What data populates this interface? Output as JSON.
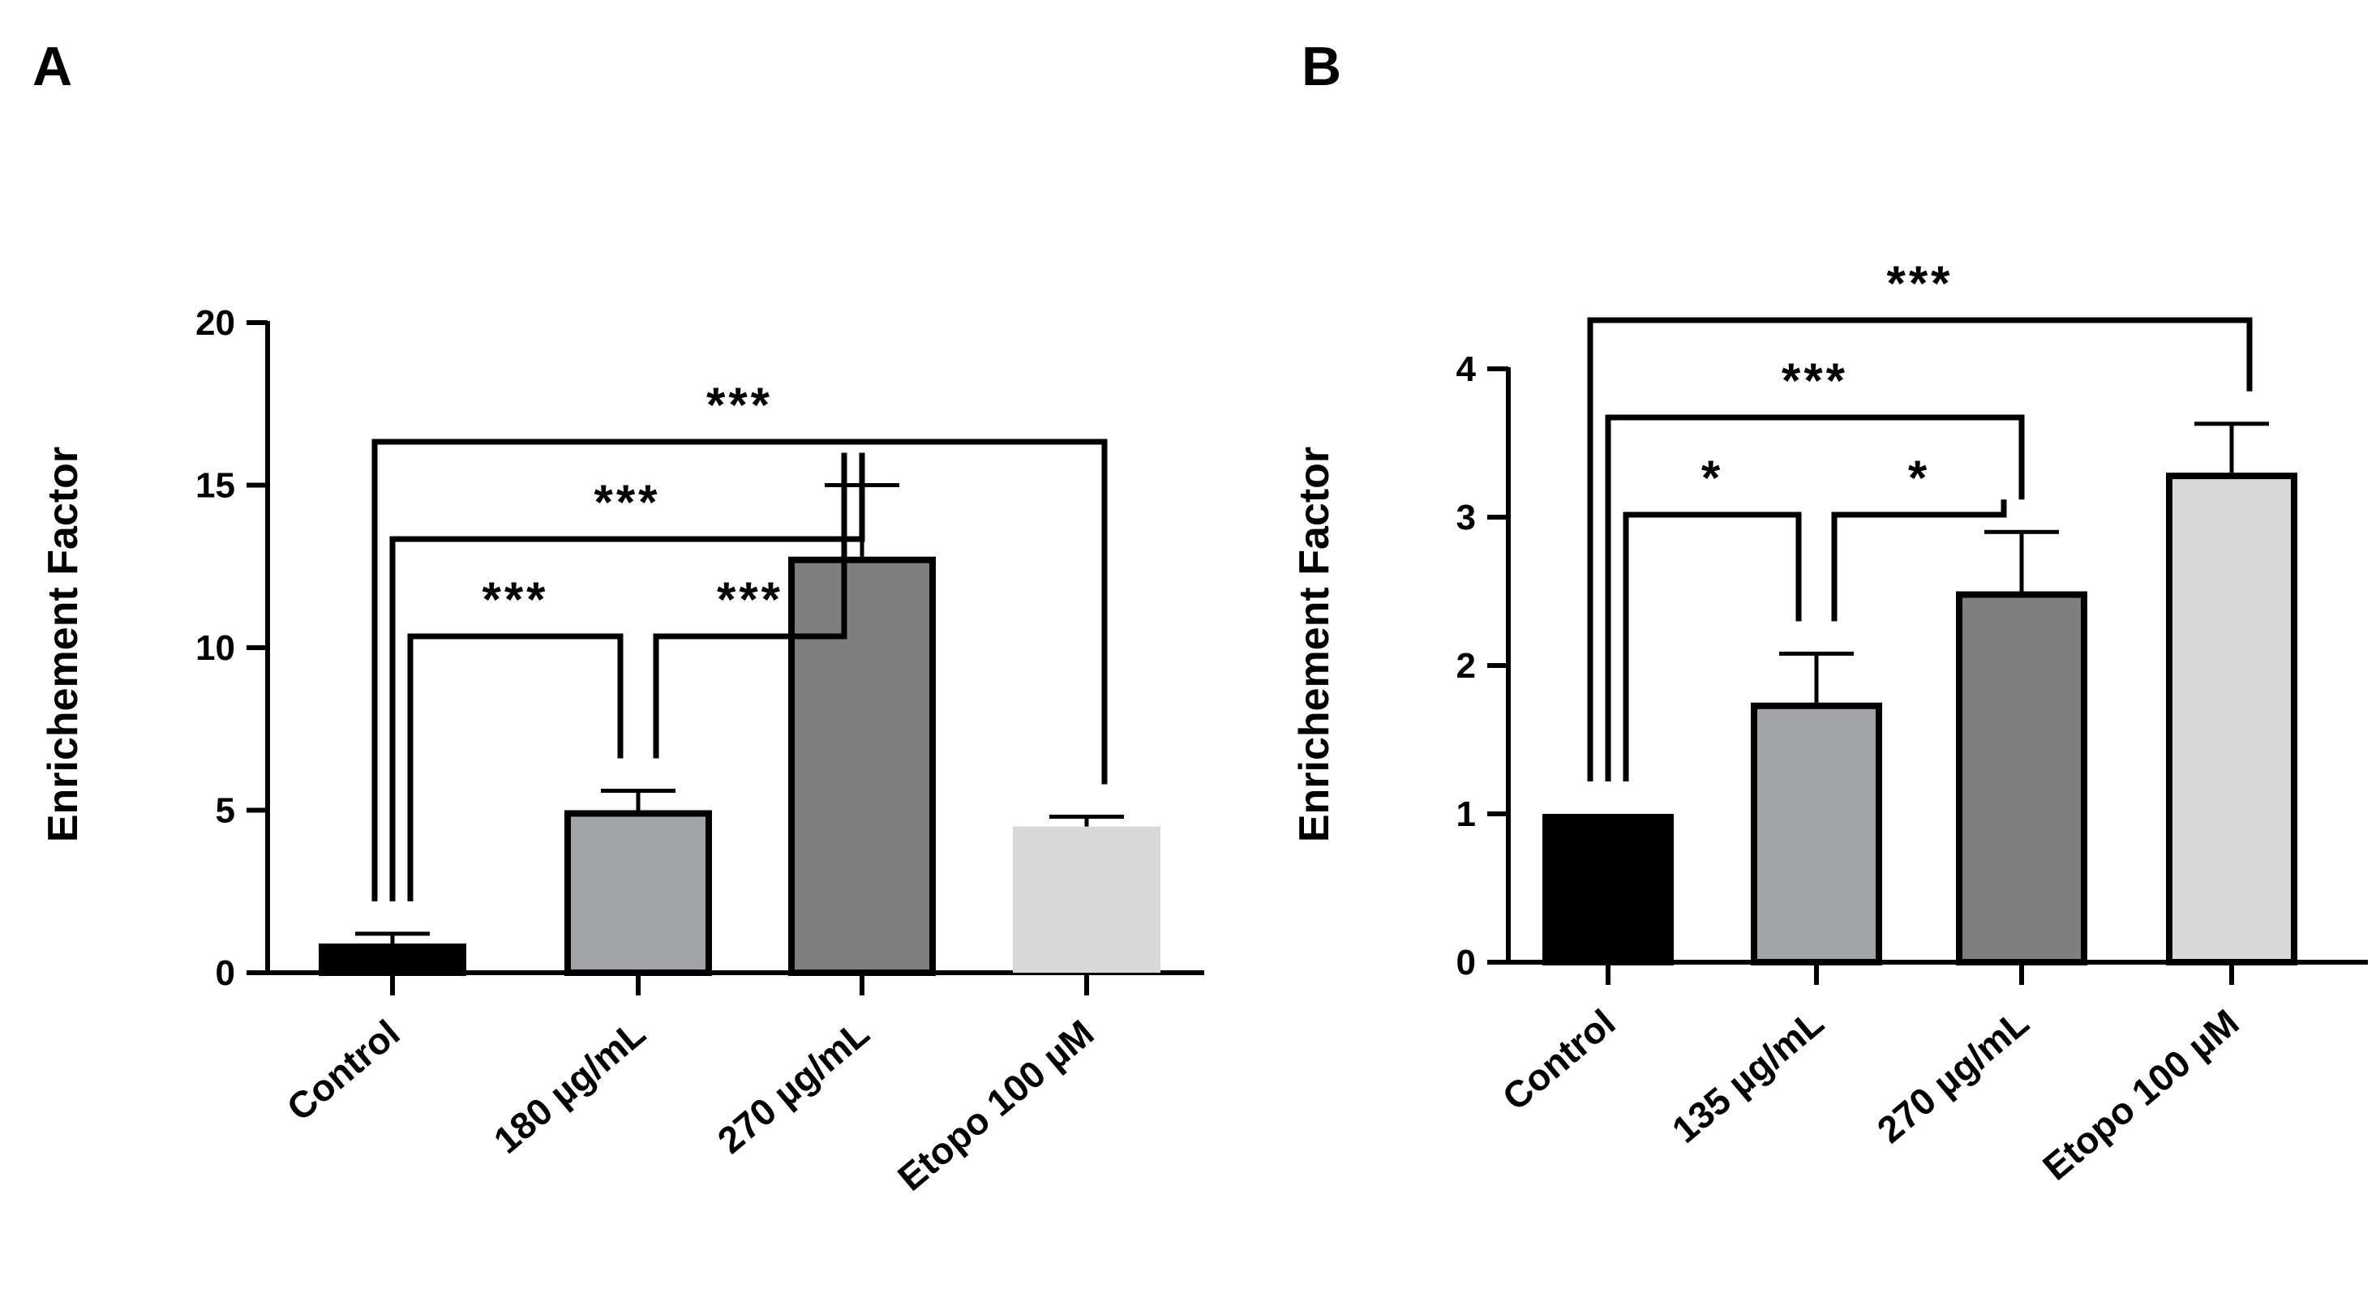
{
  "chart_data": [
    {
      "type": "bar",
      "panel": "A",
      "ylabel": "Enrichement Factor",
      "ylim": [
        0,
        20
      ],
      "yticks": [
        0,
        5,
        10,
        15,
        20
      ],
      "categories": [
        "Control",
        "180 µg/mL",
        "270 µg/mL",
        "Etopo 100 µM"
      ],
      "values": [
        0.9,
        5.0,
        12.8,
        4.5
      ],
      "errors": [
        0.3,
        0.6,
        2.2,
        0.3
      ],
      "bar_colors": [
        "#000000",
        "#a2a3a7",
        "#7f7f7f",
        "#d8d8d8"
      ],
      "bar_outline": [
        true,
        true,
        true,
        false
      ],
      "significance": [
        {
          "from": 0,
          "to": 1,
          "label": "***"
        },
        {
          "from": 1,
          "to": 2,
          "label": "***"
        },
        {
          "from": 0,
          "to": 2,
          "label": "***"
        },
        {
          "from": 0,
          "to": 3,
          "label": "***"
        }
      ]
    },
    {
      "type": "bar",
      "panel": "B",
      "ylabel": "Enrichement Factor",
      "ylim": [
        0,
        4
      ],
      "yticks": [
        0,
        1,
        2,
        3,
        4
      ],
      "categories": [
        "Control",
        "135 µg/mL",
        "270 µg/mL",
        "Etopo 100 µM"
      ],
      "values": [
        1.0,
        1.75,
        2.5,
        3.3
      ],
      "errors": [
        0.0,
        0.33,
        0.4,
        0.33
      ],
      "bar_colors": [
        "#000000",
        "#a2a3a7",
        "#7f7f7f",
        "#d8d8d8"
      ],
      "bar_outline": [
        true,
        true,
        true,
        true
      ],
      "significance": [
        {
          "from": 0,
          "to": 1,
          "label": "*"
        },
        {
          "from": 1,
          "to": 2,
          "label": "*"
        },
        {
          "from": 0,
          "to": 2,
          "label": "***"
        },
        {
          "from": 0,
          "to": 3,
          "label": "***"
        }
      ]
    }
  ]
}
